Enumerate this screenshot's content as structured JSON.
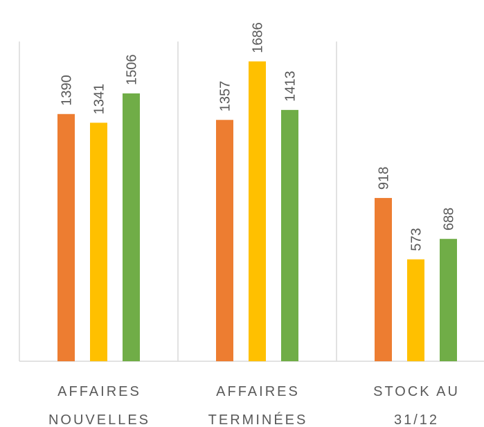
{
  "chart_data": {
    "type": "bar",
    "categories": [
      [
        "AFFAIRES",
        "NOUVELLES"
      ],
      [
        "AFFAIRES",
        "TERMINÉES"
      ],
      [
        "STOCK AU",
        "31/12"
      ]
    ],
    "series": [
      {
        "color": "#ed7d31",
        "values": [
          1390,
          1357,
          918
        ]
      },
      {
        "color": "#ffc000",
        "values": [
          1341,
          1686,
          573
        ]
      },
      {
        "color": "#70ad47",
        "values": [
          1506,
          1413,
          688
        ]
      }
    ],
    "ylim": [
      0,
      2000
    ]
  }
}
